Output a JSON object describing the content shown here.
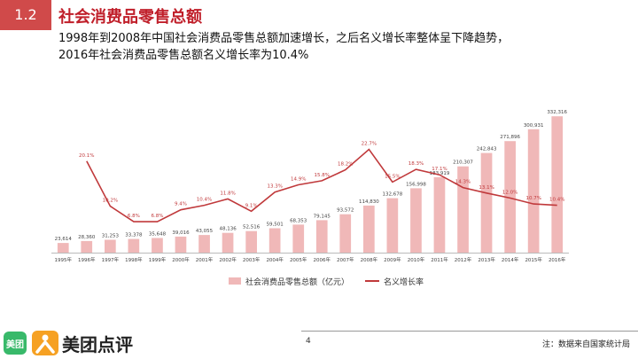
{
  "header": {
    "section_number": "1.2",
    "title": "社会消费品零售总额",
    "subtitle_line1": "1998年到2008年中国社会消费品零售总额加速增长，之后名义增长率整体呈下降趋势，",
    "subtitle_line2": "2016年社会消费品零售总额名义增长率为10.4%"
  },
  "chart_data": {
    "type": "bar",
    "categories": [
      "1995年",
      "1996年",
      "1997年",
      "1998年",
      "1999年",
      "2000年",
      "2001年",
      "2002年",
      "2003年",
      "2004年",
      "2005年",
      "2006年",
      "2007年",
      "2008年",
      "2009年",
      "2010年",
      "2011年",
      "2012年",
      "2013年",
      "2014年",
      "2015年",
      "2016年"
    ],
    "series": [
      {
        "name": "社会消费品零售总额（亿元）",
        "type": "bar",
        "color": "#f0b8b8",
        "values": [
          23614,
          28360,
          31253,
          33378,
          35648,
          39016,
          43055,
          48136,
          52516,
          59501,
          68353,
          79145,
          93572,
          114830,
          132678,
          156998,
          183919,
          210307,
          242843,
          271896,
          300931,
          332316
        ],
        "labels": [
          "23,614",
          "28,360",
          "31,253",
          "33,378",
          "35,648",
          "39,016",
          "43,055",
          "48,136",
          "52,516",
          "59,501",
          "68,353",
          "79,145",
          "93,572",
          "114,830",
          "132,678",
          "156,998",
          "183,919",
          "210,307",
          "242,843",
          "271,896",
          "300,931",
          "332,316"
        ]
      },
      {
        "name": "名义增长率",
        "type": "line",
        "color": "#c0393b",
        "values": [
          null,
          20.1,
          10.2,
          6.8,
          6.8,
          9.4,
          10.4,
          11.8,
          9.1,
          13.3,
          14.9,
          15.8,
          18.2,
          22.7,
          15.5,
          18.3,
          17.1,
          14.3,
          13.1,
          12.0,
          10.7,
          10.4
        ],
        "labels": [
          "",
          "20.1%",
          "10.2%",
          "6.8%",
          "6.8%",
          "9.4%",
          "10.4%",
          "11.8%",
          "9.1%",
          "13.3%",
          "14.9%",
          "15.8%",
          "18.2%",
          "22.7%",
          "15.5%",
          "18.3%",
          "17.1%",
          "14.3%",
          "13.1%",
          "12.0%",
          "10.7%",
          "10.4%"
        ]
      }
    ],
    "ylim_bar": [
      0,
      335000
    ],
    "ylim_line": [
      0,
      30
    ],
    "legend_position": "bottom",
    "grid": false
  },
  "legend": {
    "bar_label": "社会消费品零售总额（亿元）",
    "line_label": "名义增长率"
  },
  "footer": {
    "page_number": "4",
    "note": "注：数据来自国家统计局",
    "logo_badge": "美团",
    "logo_text": "美团点评"
  }
}
